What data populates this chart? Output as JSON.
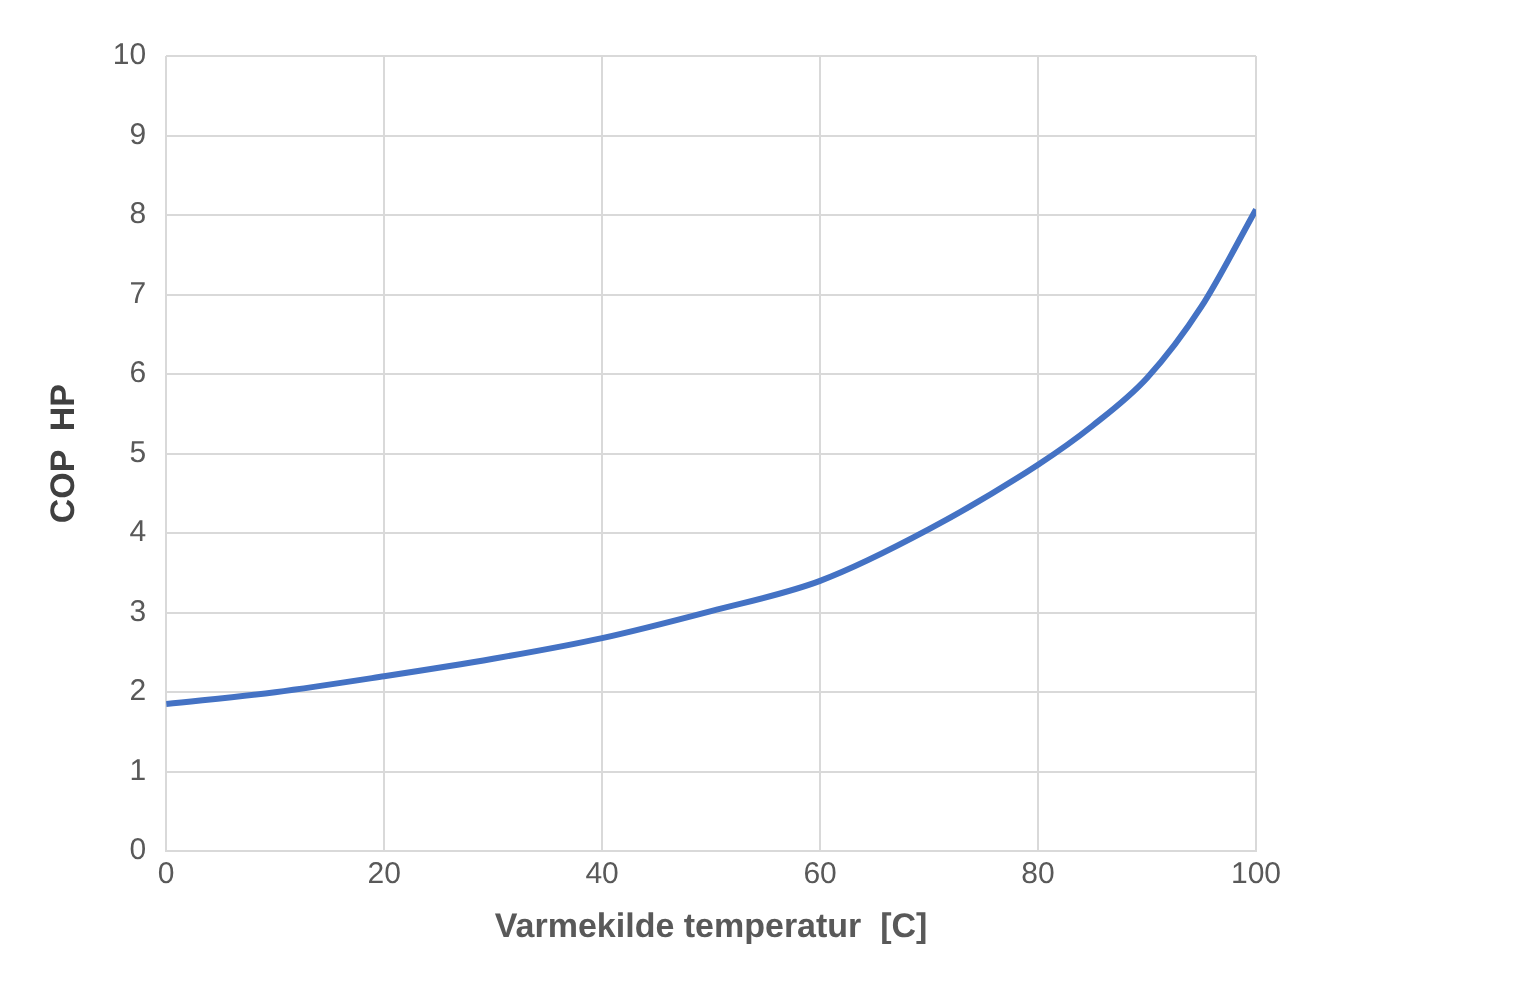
{
  "chart_data": {
    "type": "line",
    "xlabel": "Varmekilde temperatur  [C]",
    "ylabel": "COP  HP",
    "x": [
      0,
      10,
      20,
      30,
      40,
      50,
      60,
      70,
      80,
      85,
      90,
      95,
      100
    ],
    "series": [
      {
        "color": "#4472c4",
        "values": [
          1.85,
          2.0,
          2.2,
          2.42,
          2.68,
          3.02,
          3.4,
          4.05,
          4.86,
          5.35,
          5.95,
          6.85,
          8.07
        ]
      }
    ],
    "xlim": [
      0,
      100
    ],
    "xticks": [
      0,
      20,
      40,
      60,
      80,
      100
    ],
    "ylim": [
      0,
      10
    ],
    "yticks": [
      0,
      1,
      2,
      3,
      4,
      5,
      6,
      7,
      8,
      9,
      10
    ],
    "grid": true,
    "legend": false,
    "marker": "none",
    "line_style": "solid"
  }
}
